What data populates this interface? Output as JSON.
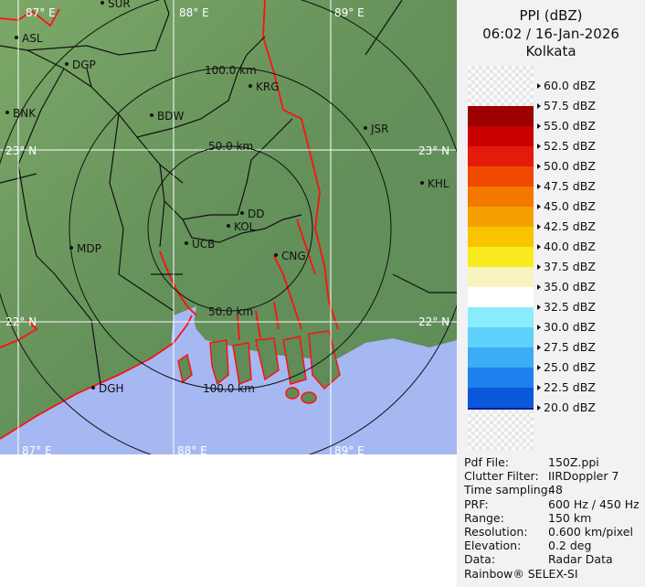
{
  "header": {
    "product": "PPI (dBZ)",
    "datetime": "06:02 / 16-Jan-2026",
    "site": "Kolkata"
  },
  "legend": {
    "labels": [
      "60.0 dBZ",
      "57.5 dBZ",
      "55.0 dBZ",
      "52.5 dBZ",
      "50.0 dBZ",
      "47.5 dBZ",
      "45.0 dBZ",
      "42.5 dBZ",
      "40.0 dBZ",
      "37.5 dBZ",
      "35.0 dBZ",
      "32.5 dBZ",
      "30.0 dBZ",
      "27.5 dBZ",
      "25.0 dBZ",
      "22.5 dBZ",
      "20.0 dBZ"
    ],
    "colors": [
      "#9c0000",
      "#c80000",
      "#e41a0a",
      "#f04a00",
      "#f47800",
      "#f6a000",
      "#f8c400",
      "#f8ec20",
      "#f8f4c0",
      "#ffffff",
      "#88ecfc",
      "#60d0fc",
      "#3cacf4",
      "#1e80ec",
      "#0c58dc",
      "#0434b8",
      "#081c90"
    ]
  },
  "info": [
    {
      "label": "Pdf File:",
      "value": "150Z.ppi"
    },
    {
      "label": "Clutter Filter:",
      "value": "IIRDoppler 7"
    },
    {
      "label": "Time sampling:",
      "value": "48"
    },
    {
      "label": "PRF:",
      "value": "600 Hz / 450 Hz"
    },
    {
      "label": "Range:",
      "value": "150 km"
    },
    {
      "label": "Resolution:",
      "value": "0.600 km/pixel"
    },
    {
      "label": "Elevation:",
      "value": "0.2 deg"
    },
    {
      "label": "Data:",
      "value": "Radar Data"
    }
  ],
  "footer": "Rainbow® SELEX-SI",
  "map": {
    "grid": {
      "lon_top": [
        "87° E",
        "88° E",
        "89° E"
      ],
      "lon_bottom": [
        "87° E",
        "88° E",
        "89° E"
      ],
      "lat": [
        "23° N",
        "22° N"
      ]
    },
    "rings": [
      "50.0 km",
      "100.0 km",
      "50.0 km",
      "100.0 km"
    ],
    "cities": [
      "SUR",
      "ASL",
      "DGP",
      "BNK",
      "BDW",
      "KRG",
      "JSR",
      "KHL",
      "DD",
      "KOL",
      "UCB",
      "MDP",
      "CNG",
      "DGH"
    ],
    "colors": {
      "land": "#6e9a5e",
      "sea": "#a6b8f2",
      "coast": "#ff1010",
      "border": "#111111",
      "grid": "#ffffff"
    }
  }
}
